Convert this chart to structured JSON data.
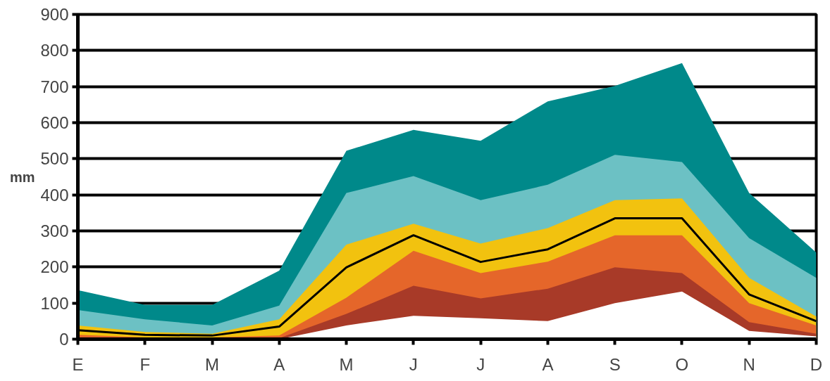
{
  "chart_data": {
    "type": "area",
    "ylabel": "mm",
    "categories": [
      "E",
      "F",
      "M",
      "A",
      "M",
      "J",
      "J",
      "A",
      "S",
      "O",
      "N",
      "D"
    ],
    "series": [
      {
        "color": "#00898a",
        "values": [
          136,
          95,
          95,
          190,
          522,
          580,
          550,
          659,
          702,
          765,
          405,
          240
        ]
      },
      {
        "color": "#6cc1c4",
        "values": [
          81,
          55,
          38,
          93,
          405,
          452,
          385,
          428,
          511,
          491,
          280,
          170
        ]
      },
      {
        "color": "#f2c20f",
        "values": [
          38,
          20,
          15,
          55,
          262,
          320,
          265,
          308,
          385,
          390,
          170,
          63
        ]
      },
      {
        "color": "#e5662a",
        "values": [
          12,
          5,
          5,
          10,
          115,
          245,
          183,
          215,
          288,
          288,
          100,
          38
        ]
      },
      {
        "color": "#a83a28",
        "values": [
          5,
          3,
          3,
          3,
          70,
          148,
          113,
          140,
          199,
          183,
          47,
          15
        ]
      },
      {
        "color": "#ffffff",
        "values": [
          0,
          0,
          0,
          0,
          38,
          65,
          58,
          50,
          100,
          132,
          23,
          8
        ]
      },
      {
        "type": "line",
        "color": "#000000",
        "values": [
          25,
          12,
          10,
          35,
          199,
          288,
          214,
          249,
          335,
          335,
          124,
          50
        ]
      }
    ],
    "ylim": [
      0,
      900
    ],
    "yticks": [
      0,
      100,
      200,
      300,
      400,
      500,
      600,
      700,
      800,
      900
    ],
    "grid": "y"
  }
}
